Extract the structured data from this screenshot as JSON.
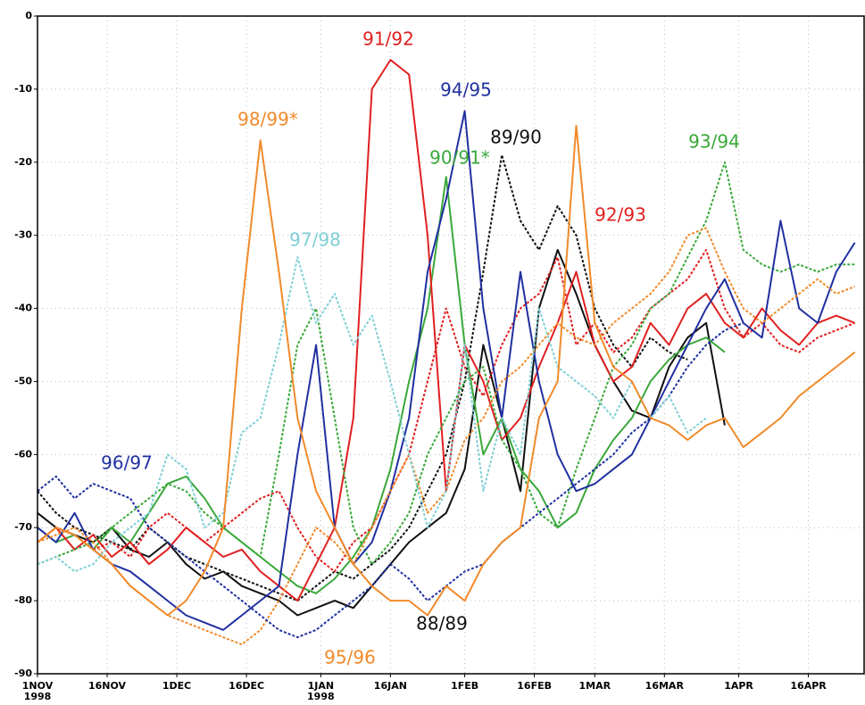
{
  "chart_data": {
    "type": "line",
    "x": [
      0,
      4,
      8,
      12,
      16,
      20,
      24,
      28,
      32,
      36,
      40,
      44,
      48,
      52,
      56,
      60,
      64,
      68,
      72,
      76,
      80,
      84,
      88,
      92,
      96,
      100,
      104,
      108,
      112,
      116,
      120,
      124,
      128,
      132,
      136,
      140,
      144,
      148,
      152,
      156,
      160,
      164,
      168,
      172,
      176
    ],
    "xlim": [
      0,
      178
    ],
    "xticks": [
      {
        "value": 0,
        "label": "1NOV"
      },
      {
        "value": 15,
        "label": "16NOV"
      },
      {
        "value": 30,
        "label": "1DEC"
      },
      {
        "value": 45,
        "label": "16DEC"
      },
      {
        "value": 61,
        "label": "1JAN"
      },
      {
        "value": 76,
        "label": "16JAN"
      },
      {
        "value": 92,
        "label": "1FEB"
      },
      {
        "value": 107,
        "label": "16FEB"
      },
      {
        "value": 120,
        "label": "1MAR"
      },
      {
        "value": 135,
        "label": "16MAR"
      },
      {
        "value": 151,
        "label": "1APR"
      },
      {
        "value": 166,
        "label": "16APR"
      }
    ],
    "x_year_labels": [
      {
        "value": 0,
        "label": "1998"
      },
      {
        "value": 61,
        "label": "1998"
      }
    ],
    "ylim": [
      -90,
      0
    ],
    "yticks": [
      0,
      -10,
      -20,
      -30,
      -40,
      -50,
      -60,
      -70,
      -80,
      -90
    ],
    "grid": true,
    "series": [
      {
        "name": "88/89",
        "color": "#111111",
        "dashed": false,
        "values": [
          -68,
          -70,
          -71,
          -72,
          -70,
          -73,
          -74,
          -72,
          -75,
          -77,
          -76,
          -78,
          -79,
          -80,
          -82,
          -81,
          -80,
          -81,
          -78,
          -75,
          -72,
          -70,
          -68,
          -62,
          -45,
          -55,
          -65,
          -40,
          -32,
          -38,
          -45,
          -50,
          -54,
          -55,
          -48,
          -44,
          -42,
          -56,
          null,
          null,
          null,
          null,
          null,
          null,
          null
        ]
      },
      {
        "name": "89/90",
        "color": "#111111",
        "dashed": true,
        "values": [
          -65,
          -68,
          -70,
          -71,
          -72,
          -73,
          -70,
          -72,
          -74,
          -75,
          -76,
          -77,
          -78,
          -79,
          -80,
          -78,
          -76,
          -77,
          -75,
          -73,
          -70,
          -65,
          -60,
          -50,
          -35,
          -19,
          -28,
          -32,
          -26,
          -30,
          -40,
          -45,
          -48,
          -44,
          -46,
          -47,
          null,
          null,
          null,
          null,
          null,
          null,
          null,
          null,
          null
        ]
      },
      {
        "name": "90/91*",
        "color": "#3aa83a",
        "dashed": false,
        "values": [
          -70,
          -72,
          -71,
          -73,
          -70,
          -72,
          -68,
          -64,
          -63,
          -66,
          -70,
          -72,
          -74,
          -76,
          -78,
          -79,
          -77,
          -74,
          -70,
          -62,
          -50,
          -40,
          -22,
          -45,
          -60,
          -55,
          -62,
          -65,
          -70,
          -68,
          -62,
          -58,
          -55,
          -50,
          -47,
          -45,
          -44,
          -46,
          null,
          null,
          null,
          null,
          null,
          null,
          null
        ]
      },
      {
        "name": "91/92",
        "color": "#e02020",
        "dashed": false,
        "values": [
          -72,
          -70,
          -73,
          -71,
          -74,
          -72,
          -75,
          -73,
          -70,
          -72,
          -74,
          -73,
          -76,
          -78,
          -80,
          -75,
          -70,
          -55,
          -10,
          -6,
          -8,
          -30,
          -65,
          -45,
          -50,
          -58,
          -55,
          -48,
          -42,
          -35,
          -45,
          -50,
          -48,
          -42,
          -45,
          -40,
          -38,
          -42,
          -44,
          -40,
          -43,
          -45,
          -42,
          -41,
          -42
        ]
      },
      {
        "name": "92/93",
        "color": "#e02020",
        "dashed": true,
        "values": [
          -72,
          -70,
          -71,
          -73,
          -72,
          -74,
          -70,
          -68,
          -70,
          -72,
          -70,
          -68,
          -66,
          -65,
          -70,
          -74,
          -76,
          -72,
          -70,
          -65,
          -60,
          -50,
          -40,
          -48,
          -52,
          -45,
          -40,
          -38,
          -33,
          -45,
          -42,
          -46,
          -44,
          -40,
          -38,
          -36,
          -32,
          -40,
          -44,
          -42,
          -45,
          -46,
          -44,
          -43,
          -42
        ]
      },
      {
        "name": "93/94",
        "color": "#3aa83a",
        "dashed": true,
        "values": [
          -75,
          -74,
          -73,
          -72,
          -70,
          -68,
          -66,
          -64,
          -65,
          -68,
          -70,
          -72,
          -74,
          -60,
          -45,
          -40,
          -55,
          -70,
          -75,
          -72,
          -68,
          -60,
          -55,
          -50,
          -48,
          -58,
          -62,
          -68,
          -70,
          -62,
          -55,
          -48,
          -45,
          -40,
          -38,
          -33,
          -28,
          -20,
          -32,
          -34,
          -35,
          -34,
          -35,
          -34,
          -34
        ]
      },
      {
        "name": "94/95",
        "color": "#2030a0",
        "dashed": false,
        "values": [
          -70,
          -72,
          -68,
          -73,
          -75,
          -76,
          -78,
          -80,
          -82,
          -83,
          -84,
          -82,
          -80,
          -78,
          -60,
          -45,
          -70,
          -75,
          -72,
          -65,
          -55,
          -35,
          -25,
          -13,
          -40,
          -55,
          -35,
          -50,
          -60,
          -65,
          -64,
          -62,
          -60,
          -55,
          -50,
          -45,
          -40,
          -36,
          -42,
          -44,
          -28,
          -40,
          -42,
          -35,
          -31
        ]
      },
      {
        "name": "95/96",
        "color": "#f08a2a",
        "dashed": true,
        "values": [
          -72,
          -71,
          -70,
          -72,
          -75,
          -78,
          -80,
          -82,
          -83,
          -84,
          -85,
          -86,
          -84,
          -80,
          -75,
          -70,
          -72,
          -75,
          -70,
          -65,
          -60,
          -68,
          -65,
          -58,
          -55,
          -50,
          -48,
          -45,
          -42,
          -44,
          -45,
          -42,
          -40,
          -38,
          -35,
          -30,
          -29,
          -35,
          -40,
          -42,
          -40,
          -38,
          -36,
          -38,
          -37
        ]
      },
      {
        "name": "96/97",
        "color": "#2030a0",
        "dashed": true,
        "values": [
          -65,
          -63,
          -66,
          -64,
          -65,
          -66,
          -70,
          -72,
          -74,
          -76,
          -78,
          -80,
          -82,
          -84,
          -85,
          -84,
          -82,
          -80,
          -78,
          -75,
          -77,
          -80,
          -78,
          -76,
          -75,
          -72,
          -70,
          -68,
          -66,
          -64,
          -62,
          -60,
          -57,
          -55,
          -52,
          -48,
          -45,
          -43,
          -42,
          null,
          null,
          null,
          null,
          null,
          null
        ]
      },
      {
        "name": "97/98",
        "color": "#7fcfd6",
        "dashed": true,
        "values": [
          -75,
          -74,
          -76,
          -75,
          -72,
          -70,
          -68,
          -60,
          -62,
          -70,
          -68,
          -57,
          -55,
          -45,
          -33,
          -42,
          -38,
          -45,
          -41,
          -50,
          -60,
          -70,
          -65,
          -45,
          -65,
          -55,
          -60,
          -40,
          -48,
          -50,
          -52,
          -55,
          -50,
          -55,
          -52,
          -57,
          -55,
          null,
          null,
          null,
          null,
          null,
          null,
          null,
          null
        ]
      },
      {
        "name": "98/99*",
        "color": "#f08a2a",
        "dashed": false,
        "values": [
          -72,
          -70,
          -71,
          -73,
          -75,
          -78,
          -80,
          -82,
          -80,
          -76,
          -70,
          -40,
          -17,
          -35,
          -55,
          -65,
          -70,
          -75,
          -78,
          -80,
          -80,
          -82,
          -78,
          -80,
          -75,
          -72,
          -70,
          -55,
          -50,
          -15,
          -42,
          -48,
          -50,
          -55,
          -56,
          -58,
          -56,
          -55,
          -59,
          -57,
          -55,
          -52,
          -50,
          -48,
          -46
        ]
      }
    ]
  }
}
